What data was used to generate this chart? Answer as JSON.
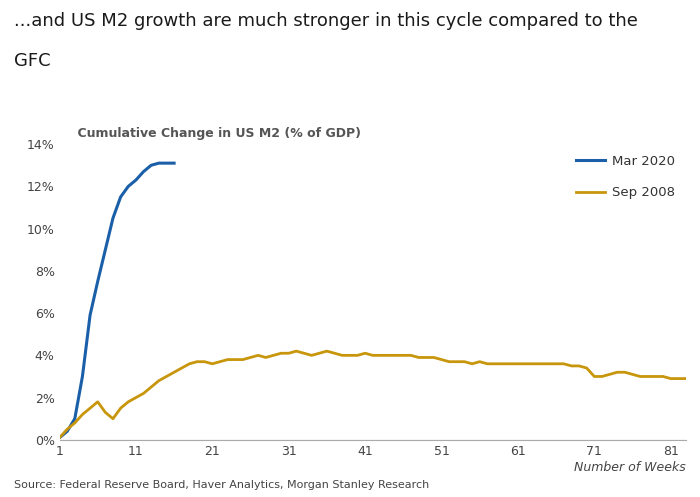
{
  "title_line1": "...and US M2 growth are much stronger in this cycle compared to the",
  "title_line2": "GFC",
  "subtitle": "    Cumulative Change in US M2 (% of GDP)",
  "xlabel": "Number of Weeks",
  "source": "Source: Federal Reserve Board, Haver Analytics, Morgan Stanley Research",
  "legend_mar2020": "Mar 2020",
  "legend_sep2008": "Sep 2008",
  "color_mar2020": "#1a5fa8",
  "color_sep2008": "#c8960c",
  "background_color": "#ffffff",
  "ylim": [
    0,
    0.14
  ],
  "xlim": [
    1,
    83
  ],
  "xticks": [
    1,
    11,
    21,
    31,
    41,
    51,
    61,
    71,
    81
  ],
  "yticks": [
    0,
    0.02,
    0.04,
    0.06,
    0.08,
    0.1,
    0.12,
    0.14
  ],
  "mar2020_x": [
    1,
    2,
    3,
    4,
    5,
    6,
    7,
    8,
    9,
    10,
    11,
    12,
    13,
    14,
    15,
    16
  ],
  "mar2020_y": [
    0.001,
    0.004,
    0.01,
    0.03,
    0.059,
    0.075,
    0.09,
    0.105,
    0.115,
    0.12,
    0.123,
    0.127,
    0.13,
    0.131,
    0.131,
    0.131
  ],
  "sep2008_x": [
    1,
    2,
    3,
    4,
    5,
    6,
    7,
    8,
    9,
    10,
    11,
    12,
    13,
    14,
    15,
    16,
    17,
    18,
    19,
    20,
    21,
    22,
    23,
    24,
    25,
    26,
    27,
    28,
    29,
    30,
    31,
    32,
    33,
    34,
    35,
    36,
    37,
    38,
    39,
    40,
    41,
    42,
    43,
    44,
    45,
    46,
    47,
    48,
    49,
    50,
    51,
    52,
    53,
    54,
    55,
    56,
    57,
    58,
    59,
    60,
    61,
    62,
    63,
    64,
    65,
    66,
    67,
    68,
    69,
    70,
    71,
    72,
    73,
    74,
    75,
    76,
    77,
    78,
    79,
    80,
    81,
    82,
    83
  ],
  "sep2008_y": [
    0.001,
    0.005,
    0.008,
    0.012,
    0.015,
    0.018,
    0.013,
    0.01,
    0.015,
    0.018,
    0.02,
    0.022,
    0.025,
    0.028,
    0.03,
    0.032,
    0.034,
    0.036,
    0.037,
    0.037,
    0.036,
    0.037,
    0.038,
    0.038,
    0.038,
    0.039,
    0.04,
    0.039,
    0.04,
    0.041,
    0.041,
    0.042,
    0.041,
    0.04,
    0.041,
    0.042,
    0.041,
    0.04,
    0.04,
    0.04,
    0.041,
    0.04,
    0.04,
    0.04,
    0.04,
    0.04,
    0.04,
    0.039,
    0.039,
    0.039,
    0.038,
    0.037,
    0.037,
    0.037,
    0.036,
    0.037,
    0.036,
    0.036,
    0.036,
    0.036,
    0.036,
    0.036,
    0.036,
    0.036,
    0.036,
    0.036,
    0.036,
    0.035,
    0.035,
    0.034,
    0.03,
    0.03,
    0.031,
    0.032,
    0.032,
    0.031,
    0.03,
    0.03,
    0.03,
    0.03,
    0.029,
    0.029,
    0.029
  ],
  "title_fontsize": 13,
  "subtitle_fontsize": 9,
  "tick_fontsize": 9,
  "source_fontsize": 8,
  "legend_fontsize": 9.5
}
